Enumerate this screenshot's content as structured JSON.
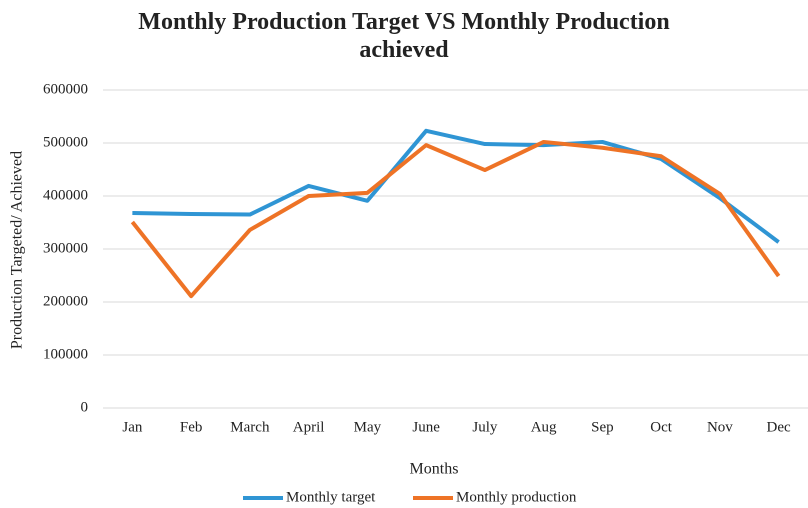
{
  "chart_data": {
    "type": "line",
    "title": "Monthly Production Target VS Monthly Production achieved",
    "x_label": "Months",
    "y_label": "Production Targeted/ Achieved",
    "categories": [
      "Jan",
      "Feb",
      "March",
      "April",
      "May",
      "June",
      "July",
      "Aug",
      "Sep",
      "Oct",
      "Nov",
      "Dec"
    ],
    "series": [
      {
        "name": "Monthly target",
        "color": "#2f95d4",
        "values": [
          368000,
          366000,
          365000,
          419000,
          391000,
          523000,
          498000,
          496000,
          502000,
          470000,
          396000,
          313000
        ]
      },
      {
        "name": "Monthly production",
        "color": "#ee7326",
        "values": [
          351000,
          211000,
          336000,
          400000,
          406000,
          496000,
          449000,
          502000,
          491000,
          475000,
          404000,
          249000
        ]
      }
    ],
    "ylim": [
      0,
      600000
    ],
    "yticks": [
      0,
      100000,
      200000,
      300000,
      400000,
      500000,
      600000
    ],
    "grid": true,
    "legend": "bottom"
  }
}
